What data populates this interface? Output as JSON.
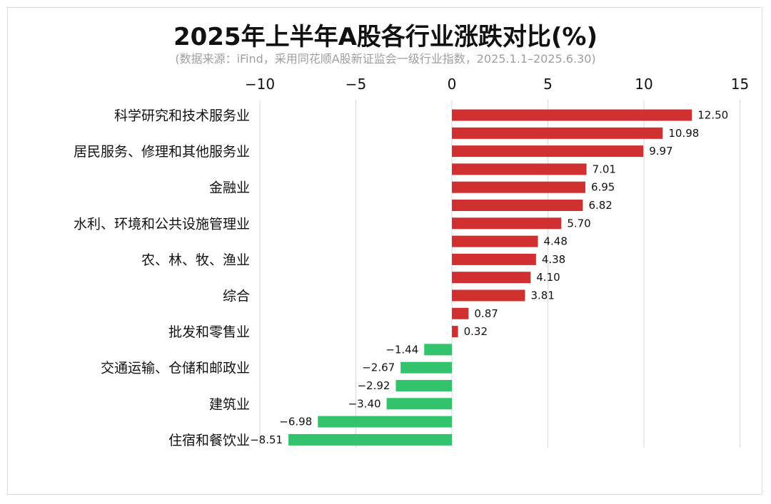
{
  "chart_data": {
    "type": "bar",
    "orientation": "horizontal",
    "title": "2025年上半年A股各行业涨跌对比(%)",
    "subtitle": "(数据来源：iFind，采用同花顺A股新证监会一级行业指数，2025.1.1–2025.6.30)",
    "xlim": [
      -10,
      15
    ],
    "xticks": [
      -10,
      -5,
      0,
      5,
      10,
      15
    ],
    "xtick_labels": [
      "−10",
      "−5",
      "0",
      "5",
      "10",
      "15"
    ],
    "grid": "vertical",
    "colors": {
      "positive": "#d0302f",
      "negative": "#34c36d",
      "grid": "#d9d9d9"
    },
    "bars": [
      {
        "label": "科学研究和技术服务业",
        "value": 12.5,
        "value_label": "12.50"
      },
      {
        "label": "",
        "value": 10.98,
        "value_label": "10.98"
      },
      {
        "label": "居民服务、修理和其他服务业",
        "value": 9.97,
        "value_label": "9.97"
      },
      {
        "label": "",
        "value": 7.01,
        "value_label": "7.01"
      },
      {
        "label": "金融业",
        "value": 6.95,
        "value_label": "6.95"
      },
      {
        "label": "",
        "value": 6.82,
        "value_label": "6.82"
      },
      {
        "label": "水利、环境和公共设施管理业",
        "value": 5.7,
        "value_label": "5.70"
      },
      {
        "label": "",
        "value": 4.48,
        "value_label": "4.48"
      },
      {
        "label": "农、林、牧、渔业",
        "value": 4.38,
        "value_label": "4.38"
      },
      {
        "label": "",
        "value": 4.1,
        "value_label": "4.10"
      },
      {
        "label": "综合",
        "value": 3.81,
        "value_label": "3.81"
      },
      {
        "label": "",
        "value": 0.87,
        "value_label": "0.87"
      },
      {
        "label": "批发和零售业",
        "value": 0.32,
        "value_label": "0.32"
      },
      {
        "label": "",
        "value": -1.44,
        "value_label": "−1.44"
      },
      {
        "label": "交通运输、仓储和邮政业",
        "value": -2.67,
        "value_label": "−2.67"
      },
      {
        "label": "",
        "value": -2.92,
        "value_label": "−2.92"
      },
      {
        "label": "建筑业",
        "value": -3.4,
        "value_label": "−3.40"
      },
      {
        "label": "",
        "value": -6.98,
        "value_label": "−6.98"
      },
      {
        "label": "住宿和餐饮业",
        "value": -8.51,
        "value_label": "−8.51"
      }
    ]
  }
}
